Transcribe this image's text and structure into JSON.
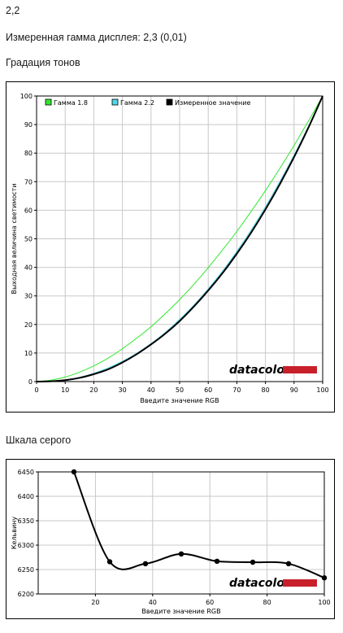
{
  "header": {
    "value": "2,2",
    "measured_gamma": "Измеренная гамма дисплея: 2,3 (0,01)",
    "section_tone": "Градация тонов",
    "section_gray": "Шкала серого"
  },
  "brand": {
    "logo_text": "datacolor",
    "bar_color": "#c8202a"
  },
  "chart_data": [
    {
      "type": "line",
      "xlabel": "Введите значение RGB",
      "ylabel": "Выходная величина светимости",
      "xlim": [
        0,
        100
      ],
      "ylim": [
        0,
        100
      ],
      "xticks": [
        "0",
        "10",
        "20",
        "30",
        "40",
        "50",
        "60",
        "70",
        "80",
        "90",
        "100"
      ],
      "yticks": [
        "0",
        "10",
        "20",
        "30",
        "40",
        "50",
        "60",
        "70",
        "80",
        "90",
        "100"
      ],
      "grid": true,
      "legend_position": "top-left",
      "x": [
        0,
        5,
        10,
        15,
        20,
        25,
        30,
        35,
        40,
        45,
        50,
        55,
        60,
        65,
        70,
        75,
        80,
        85,
        90,
        95,
        100
      ],
      "series": [
        {
          "name": "Гамма 1.8",
          "color": "#2ee82e",
          "values": [
            0,
            0.5,
            1.6,
            3.3,
            5.5,
            8.2,
            11.5,
            15.2,
            19.2,
            23.8,
            28.7,
            34.1,
            39.9,
            46.1,
            52.6,
            59.6,
            66.9,
            74.6,
            82.7,
            91.2,
            100
          ]
        },
        {
          "name": "Гамма 2.2",
          "color": "#4fd8e8",
          "values": [
            0,
            0.1,
            0.6,
            1.5,
            2.9,
            4.8,
            7.1,
            9.9,
            13.3,
            17.2,
            21.8,
            26.8,
            32.5,
            38.7,
            45.6,
            53.1,
            61.2,
            70.0,
            79.3,
            89.3,
            100
          ]
        },
        {
          "name": "Измеренное значение",
          "color": "#000000",
          "values": [
            0,
            0.1,
            0.5,
            1.3,
            2.6,
            4.3,
            6.7,
            9.6,
            13.0,
            16.8,
            21.2,
            26.3,
            31.9,
            38.0,
            44.8,
            52.2,
            60.3,
            69.1,
            78.6,
            88.9,
            100
          ]
        }
      ]
    },
    {
      "type": "line",
      "xlabel": "Введите значение RGB",
      "ylabel": "Кельвину",
      "xlim": [
        0,
        100
      ],
      "ylim": [
        6200,
        6450
      ],
      "xticks": [
        "20",
        "40",
        "60",
        "80",
        "100"
      ],
      "yticks": [
        "6200",
        "6250",
        "6300",
        "6350",
        "6400",
        "6450"
      ],
      "grid": true,
      "series": [
        {
          "color": "#000000",
          "x": [
            12.5,
            25,
            37.5,
            50,
            62.5,
            75,
            87.5,
            100
          ],
          "values": [
            6450,
            6266,
            6262,
            6282,
            6267,
            6265,
            6262,
            6233
          ]
        }
      ]
    }
  ]
}
